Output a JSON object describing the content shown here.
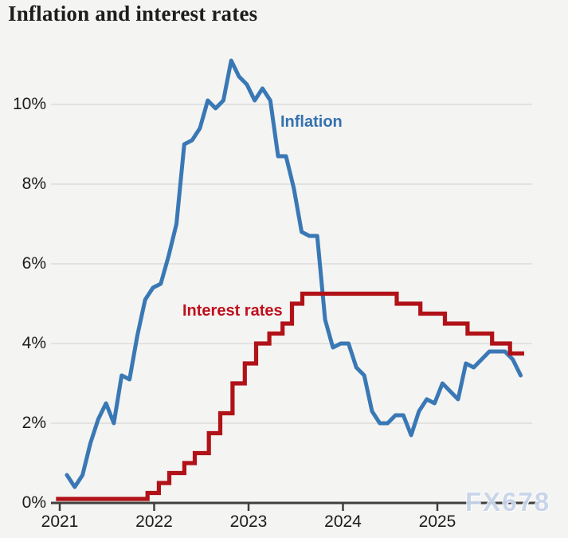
{
  "title": {
    "text": "Inflation and interest rates"
  },
  "watermark": {
    "text": "FX678"
  },
  "colors": {
    "background": "#f4f4f2",
    "title_text": "#1d1d1b",
    "text": "#1c1c1c",
    "grid": "#dcdcdc",
    "axis": "#3f3f3f",
    "inflation": "#3a78b5",
    "inflation_label": "#3371b0",
    "interest": "#b11218",
    "interest_label": "#c00f1c",
    "watermark_color": "#c7d4e9"
  },
  "chart_data": {
    "type": "line",
    "title": "Inflation and interest rates",
    "xlabel": "",
    "ylabel": "",
    "unit": "%",
    "ylim": [
      0,
      11.5
    ],
    "xlim": [
      2020.95,
      2026.08
    ],
    "grid": "horizontal",
    "legend_position": "inline-labels",
    "y_ticks": [
      {
        "value": 0,
        "label": "0%"
      },
      {
        "value": 2,
        "label": "2%"
      },
      {
        "value": 4,
        "label": "4%"
      },
      {
        "value": 6,
        "label": "6%"
      },
      {
        "value": 8,
        "label": "8%"
      },
      {
        "value": 10,
        "label": "10%"
      }
    ],
    "x_ticks": [
      {
        "value": 2021,
        "label": "2021"
      },
      {
        "value": 2022,
        "label": "2022"
      },
      {
        "value": 2023,
        "label": "2023"
      },
      {
        "value": 2024,
        "label": "2024"
      },
      {
        "value": 2025,
        "label": "2025"
      }
    ],
    "series": [
      {
        "name": "Inflation",
        "type": "line",
        "color_key": "inflation",
        "frequency": "monthly",
        "start_month": "2021-01",
        "end_month": "2025-11",
        "values": [
          0.7,
          0.4,
          0.7,
          1.5,
          2.1,
          2.5,
          2.0,
          3.2,
          3.1,
          4.2,
          5.1,
          5.4,
          5.5,
          6.2,
          7.0,
          9.0,
          9.1,
          9.4,
          10.1,
          9.9,
          10.1,
          11.1,
          10.7,
          10.5,
          10.1,
          10.4,
          10.1,
          8.7,
          8.7,
          7.9,
          6.8,
          6.7,
          6.7,
          4.6,
          3.9,
          4.0,
          4.0,
          3.4,
          3.2,
          2.3,
          2.0,
          2.0,
          2.2,
          2.2,
          1.7,
          2.3,
          2.6,
          2.5,
          3.0,
          2.8,
          2.6,
          3.5,
          3.4,
          3.6,
          3.8,
          3.8,
          3.8,
          3.6,
          3.2
        ]
      },
      {
        "name": "Interest rates",
        "type": "step",
        "color_key": "interest",
        "steps": [
          {
            "t": 2020.96,
            "rate": 0.1
          },
          {
            "t": 2021.93,
            "rate": 0.25
          },
          {
            "t": 2022.05,
            "rate": 0.5
          },
          {
            "t": 2022.16,
            "rate": 0.75
          },
          {
            "t": 2022.32,
            "rate": 1.0
          },
          {
            "t": 2022.43,
            "rate": 1.25
          },
          {
            "t": 2022.58,
            "rate": 1.75
          },
          {
            "t": 2022.7,
            "rate": 2.25
          },
          {
            "t": 2022.83,
            "rate": 3.0
          },
          {
            "t": 2022.96,
            "rate": 3.5
          },
          {
            "t": 2023.08,
            "rate": 4.0
          },
          {
            "t": 2023.22,
            "rate": 4.25
          },
          {
            "t": 2023.36,
            "rate": 4.5
          },
          {
            "t": 2023.46,
            "rate": 5.0
          },
          {
            "t": 2023.57,
            "rate": 5.25
          },
          {
            "t": 2024.57,
            "rate": 5.0
          },
          {
            "t": 2024.82,
            "rate": 4.75
          },
          {
            "t": 2025.08,
            "rate": 4.5
          },
          {
            "t": 2025.32,
            "rate": 4.25
          },
          {
            "t": 2025.58,
            "rate": 4.0
          },
          {
            "t": 2025.77,
            "rate": 3.75
          }
        ],
        "end_t": 2025.92
      }
    ],
    "annotations": [
      {
        "text": "Inflation",
        "color_key": "inflation_label",
        "left": 352,
        "top": 142
      },
      {
        "text": "Interest rates",
        "color_key": "interest_label",
        "left": 229,
        "top": 379
      }
    ]
  }
}
